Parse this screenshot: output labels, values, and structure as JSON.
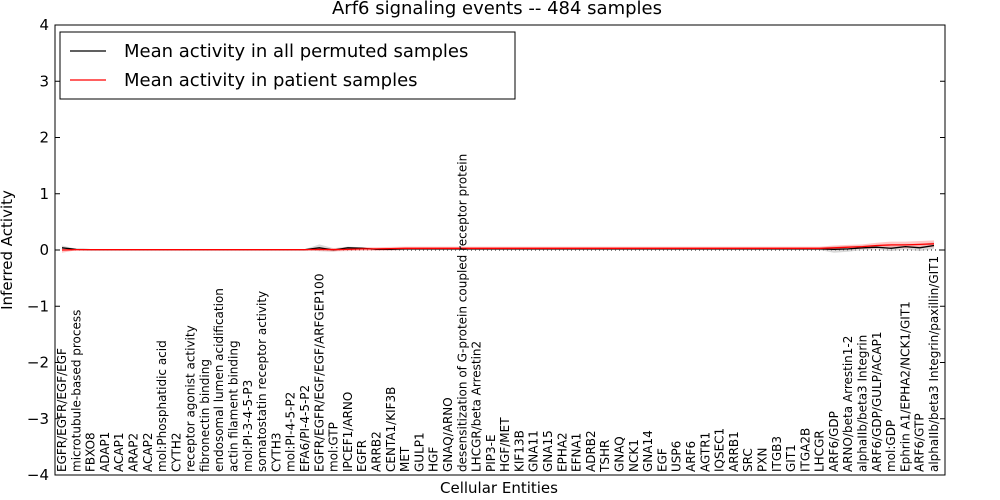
{
  "chart_data": {
    "type": "line",
    "title": "Arf6 signaling events -- 484 samples",
    "xlabel": "Cellular Entities",
    "ylabel": "Inferred Activity",
    "ylim": [
      -4,
      4
    ],
    "yticks": [
      "−4",
      "−3",
      "−2",
      "−1",
      "0",
      "1",
      "2",
      "3",
      "4"
    ],
    "reference_line": 0,
    "legend_position": "upper-left",
    "colors": {
      "permuted": "#000000",
      "patient": "#ff0000",
      "permuted_band": "#bbbbbb",
      "patient_band": "#ff9999"
    },
    "categories": [
      "EGFR/EGFR/EGF/EGF",
      "microtubule-based process",
      "FBXO8",
      "ADAP1",
      "ACAP1",
      "ARAP2",
      "ACAP2",
      "mol:Phosphatidic acid",
      "CYTH2",
      "receptor agonist activity",
      "fibronectin binding",
      "endosomal lumen acidification",
      "actin filament binding",
      "mol:PI-3-4-5-P3",
      "somatostatin receptor activity",
      "CYTH3",
      "mol:PI-4-5-P2",
      "EFA6/PI-4-5-P2",
      "EGFR/EGFR/EGF/EGF/ARFGEP100",
      "mol:GTP",
      "IPCEF1/ARNO",
      "EGFR",
      "ARRB2",
      "CENTA1/KIF3B",
      "MET",
      "GULP1",
      "HGF",
      "GNAQ/ARNO",
      "desensitization of G-protein coupled receptor protein",
      "LHCGR/beta Arrestin2",
      "PIP3-E",
      "HGF/MET",
      "KIF13B",
      "GNA11",
      "GNA15",
      "EPHA2",
      "EFNA1",
      "ADRB2",
      "TSHR",
      "GNAQ",
      "NCK1",
      "GNA14",
      "EGF",
      "USP6",
      "ARF6",
      "AGTR1",
      "IQSEC1",
      "ARRB1",
      "SRC",
      "PXN",
      "ITGB3",
      "GIT1",
      "ITGA2B",
      "LHCGR",
      "ARF6/GDP",
      "ARNO/beta Arrestin1-2",
      "alphaIIb/beta3 Integrin",
      "ARF6/GDP/GULP/ACAP1",
      "mol:GDP",
      "Ephrin A1/EPHA2/NCK1/GIT1",
      "ARF6/GTP",
      "alphaIIb/beta3 Integrin/paxillin/GIT1"
    ],
    "series": [
      {
        "name": "Mean activity in all permuted samples",
        "values": [
          0.04,
          0.01,
          0.005,
          0.005,
          0.005,
          0.005,
          0.005,
          0.005,
          0.005,
          0.005,
          0.005,
          0.005,
          0.005,
          0.005,
          0.005,
          0.005,
          0.005,
          0.005,
          0.04,
          0.0,
          0.04,
          0.03,
          0.01,
          0.01,
          0.02,
          0.02,
          0.02,
          0.02,
          0.02,
          0.02,
          0.02,
          0.02,
          0.02,
          0.02,
          0.02,
          0.02,
          0.02,
          0.02,
          0.02,
          0.02,
          0.02,
          0.02,
          0.02,
          0.02,
          0.02,
          0.02,
          0.02,
          0.02,
          0.02,
          0.02,
          0.02,
          0.02,
          0.02,
          0.02,
          0.01,
          0.02,
          0.04,
          0.05,
          0.03,
          0.06,
          0.04,
          0.08
        ],
        "band": [
          0.04,
          0.01,
          0.01,
          0.01,
          0.01,
          0.01,
          0.01,
          0.01,
          0.01,
          0.01,
          0.01,
          0.01,
          0.01,
          0.01,
          0.01,
          0.01,
          0.01,
          0.01,
          0.06,
          0.03,
          0.02,
          0.02,
          0.02,
          0.02,
          0.02,
          0.02,
          0.02,
          0.02,
          0.02,
          0.02,
          0.02,
          0.02,
          0.02,
          0.02,
          0.02,
          0.02,
          0.02,
          0.02,
          0.02,
          0.02,
          0.02,
          0.02,
          0.02,
          0.02,
          0.02,
          0.02,
          0.02,
          0.02,
          0.02,
          0.02,
          0.02,
          0.02,
          0.02,
          0.02,
          0.06,
          0.05,
          0.04,
          0.04,
          0.05,
          0.05,
          0.06,
          0.06
        ]
      },
      {
        "name": "Mean activity in patient samples",
        "values": [
          0.0,
          0.005,
          0.005,
          0.005,
          0.005,
          0.005,
          0.005,
          0.005,
          0.005,
          0.005,
          0.005,
          0.005,
          0.005,
          0.005,
          0.005,
          0.005,
          0.005,
          0.005,
          0.01,
          0.005,
          0.01,
          0.02,
          0.02,
          0.025,
          0.03,
          0.03,
          0.03,
          0.03,
          0.03,
          0.03,
          0.03,
          0.03,
          0.03,
          0.03,
          0.03,
          0.03,
          0.03,
          0.03,
          0.03,
          0.03,
          0.03,
          0.03,
          0.03,
          0.03,
          0.03,
          0.03,
          0.03,
          0.03,
          0.03,
          0.03,
          0.03,
          0.03,
          0.03,
          0.03,
          0.04,
          0.05,
          0.06,
          0.08,
          0.09,
          0.09,
          0.1,
          0.11
        ],
        "band": [
          0.05,
          0.01,
          0.01,
          0.01,
          0.01,
          0.01,
          0.01,
          0.01,
          0.01,
          0.01,
          0.01,
          0.01,
          0.01,
          0.01,
          0.01,
          0.01,
          0.01,
          0.01,
          0.03,
          0.03,
          0.03,
          0.03,
          0.03,
          0.03,
          0.03,
          0.03,
          0.03,
          0.03,
          0.03,
          0.03,
          0.03,
          0.03,
          0.03,
          0.03,
          0.03,
          0.03,
          0.03,
          0.03,
          0.03,
          0.03,
          0.03,
          0.03,
          0.03,
          0.03,
          0.03,
          0.03,
          0.03,
          0.03,
          0.03,
          0.03,
          0.03,
          0.03,
          0.03,
          0.03,
          0.04,
          0.04,
          0.04,
          0.05,
          0.06,
          0.06,
          0.06,
          0.06
        ]
      }
    ]
  }
}
